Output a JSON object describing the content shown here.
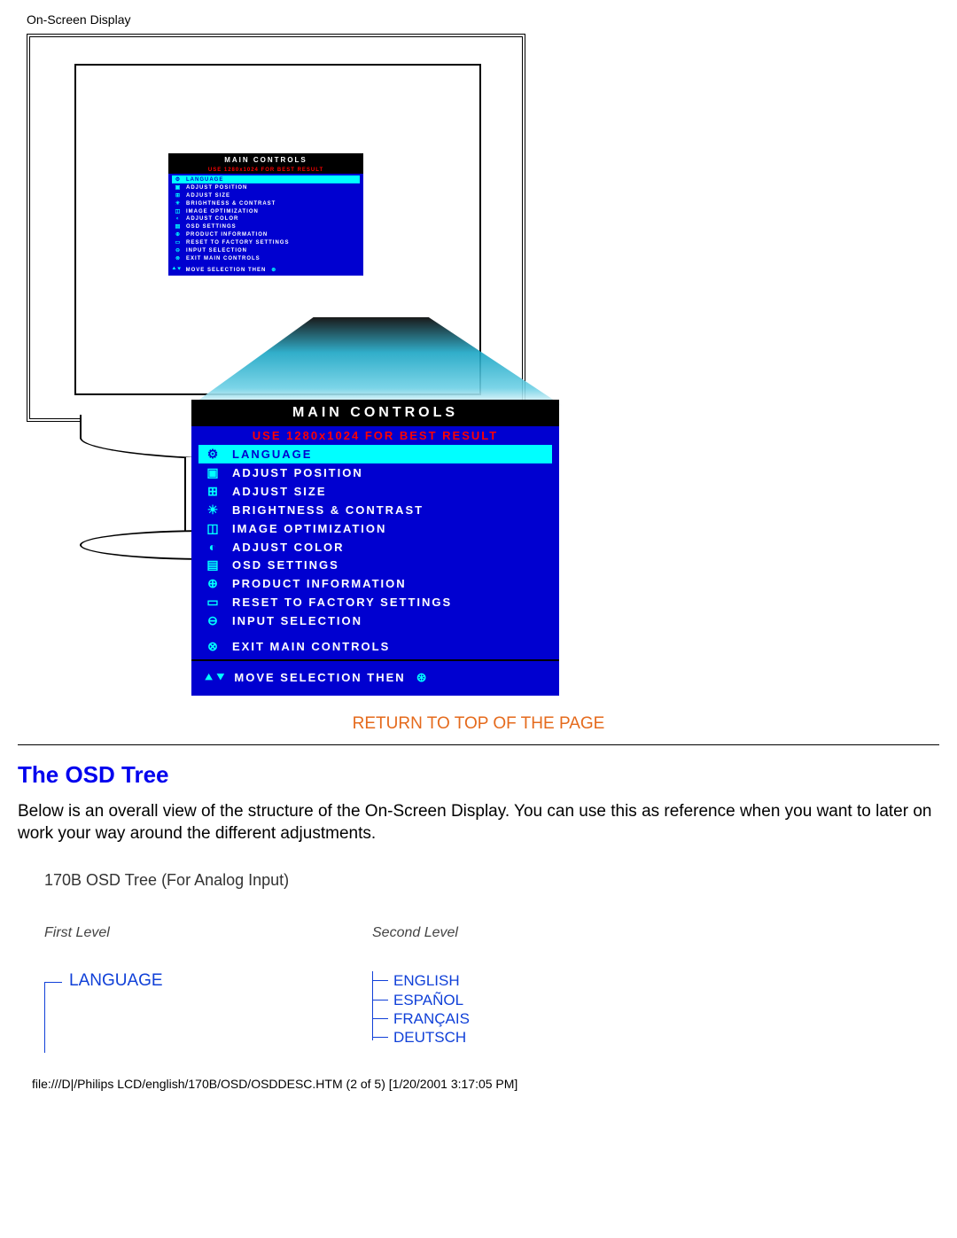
{
  "header": {
    "label": "On-Screen Display"
  },
  "osd": {
    "title": "MAIN CONTROLS",
    "subtitle": "USE 1280x1024 FOR BEST RESULT",
    "items": [
      {
        "icon": "⚙",
        "label": "LANGUAGE",
        "highlight": true
      },
      {
        "icon": "▣",
        "label": "ADJUST POSITION"
      },
      {
        "icon": "⊞",
        "label": "ADJUST SIZE"
      },
      {
        "icon": "☀",
        "label": "BRIGHTNESS & CONTRAST"
      },
      {
        "icon": "◫",
        "label": "IMAGE OPTIMIZATION"
      },
      {
        "icon": "◐",
        "label": "ADJUST COLOR"
      },
      {
        "icon": "▤",
        "label": "OSD SETTINGS"
      },
      {
        "icon": "⊕",
        "label": "PRODUCT INFORMATION"
      },
      {
        "icon": "▭",
        "label": "RESET TO FACTORY SETTINGS"
      },
      {
        "icon": "⊖",
        "label": "INPUT SELECTION"
      },
      {
        "icon": "⊗",
        "label": "EXIT MAIN CONTROLS",
        "gap": true
      }
    ],
    "footer_icons": "⯅⯆",
    "footer_text": "MOVE SELECTION THEN",
    "footer_end": "⊛"
  },
  "return_link": "RETURN TO TOP OF THE PAGE",
  "section": {
    "heading": "The OSD Tree",
    "desc": "Below is an overall view of the structure of the On-Screen Display. You can use this as reference when you want to later on work your way around the different adjustments."
  },
  "tree": {
    "title": "170B OSD Tree (For Analog Input)",
    "level1_label": "First Level",
    "level2_label": "Second Level",
    "root": "LANGUAGE",
    "children": [
      "ENGLISH",
      "ESPAÑOL",
      "FRANÇAIS",
      "DEUTSCH"
    ]
  },
  "footer_path": "file:///D|/Philips LCD/english/170B/OSD/OSDDESC.HTM (2 of 5) [1/20/2001 3:17:05 PM]"
}
